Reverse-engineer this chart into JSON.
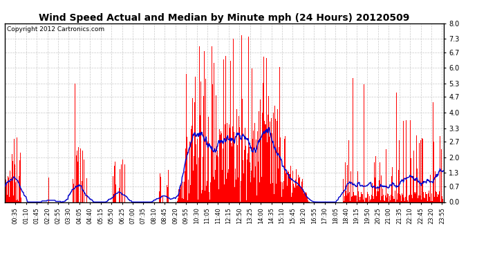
{
  "title": "Wind Speed Actual and Median by Minute mph (24 Hours) 20120509",
  "copyright": "Copyright 2012 Cartronics.com",
  "yticks": [
    0.0,
    0.7,
    1.3,
    2.0,
    2.7,
    3.3,
    4.0,
    4.7,
    5.3,
    6.0,
    6.7,
    7.3,
    8.0
  ],
  "ylim": [
    0.0,
    8.0
  ],
  "bar_color": "#FF0000",
  "line_color": "#0000CC",
  "bg_color": "#FFFFFF",
  "grid_color": "#C8C8C8",
  "title_fontsize": 10,
  "copyright_fontsize": 6.5,
  "tick_fontsize": 6,
  "ytick_fontsize": 7
}
